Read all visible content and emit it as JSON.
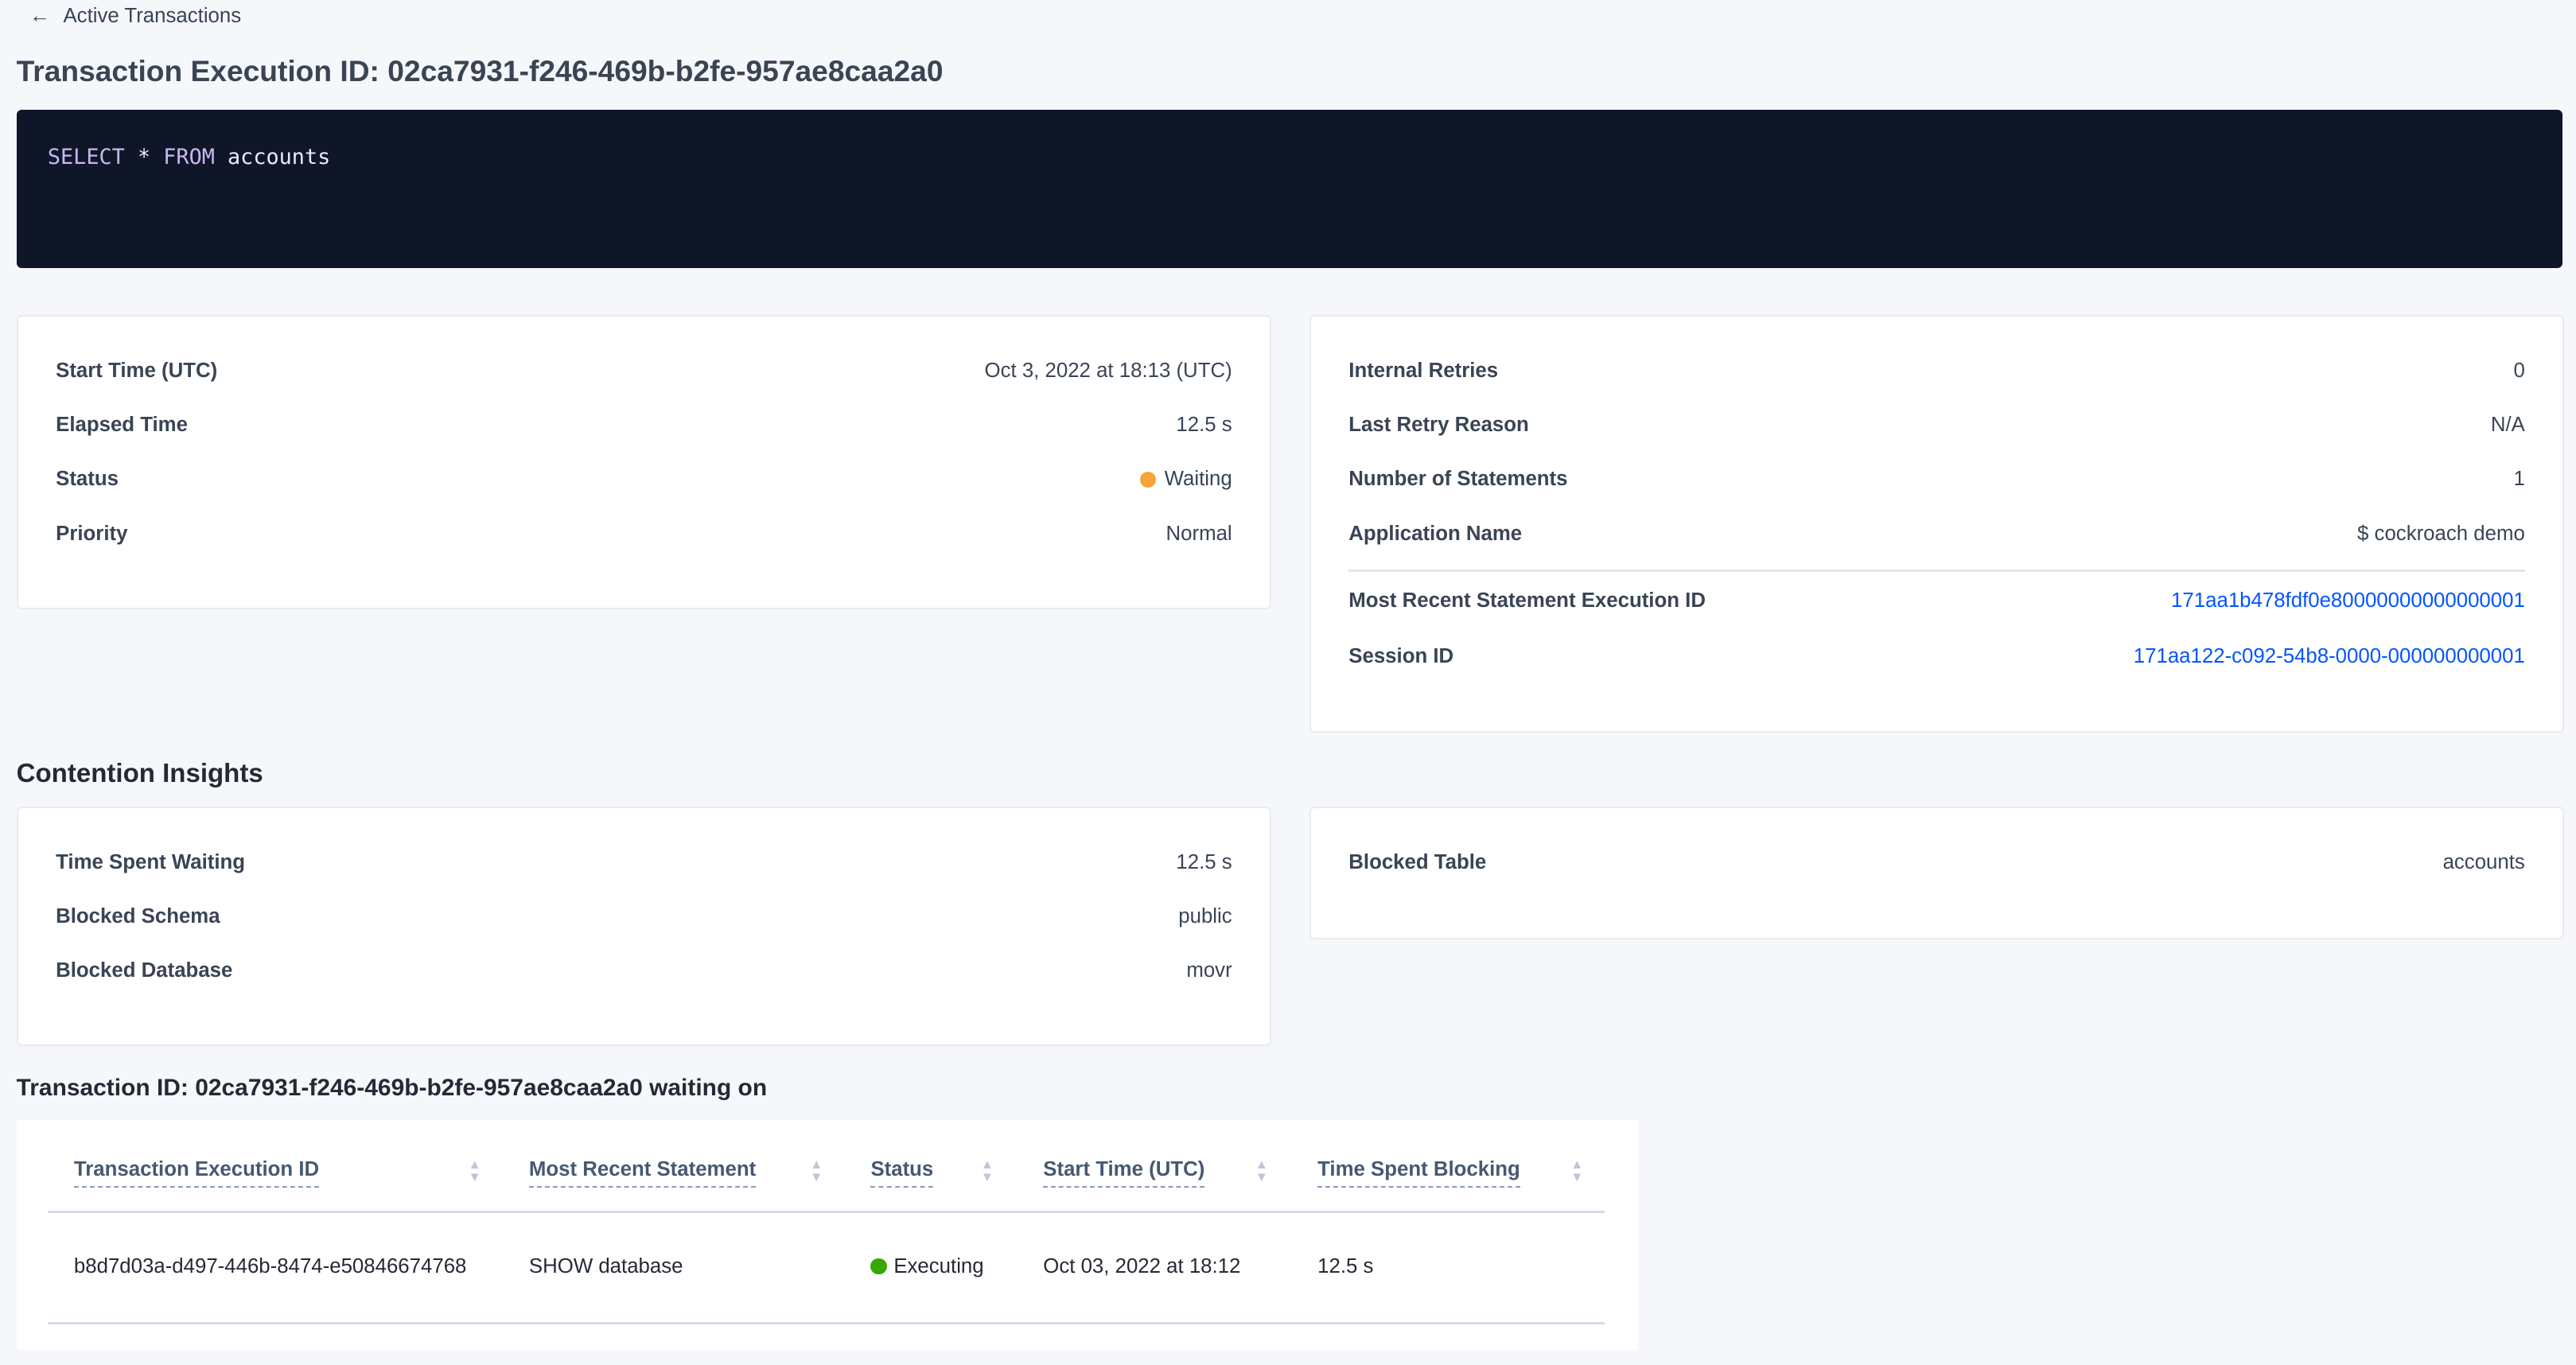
{
  "breadcrumb": {
    "label": "Active Transactions",
    "icon": "arrow-left-icon"
  },
  "title": "Transaction Execution ID: 02ca7931-f246-469b-b2fe-957ae8caa2a0",
  "sql": {
    "kw1": "SELECT",
    "star": "*",
    "kw2": "FROM",
    "table": "accounts"
  },
  "summary_left": [
    {
      "label": "Start Time (UTC)",
      "value": "Oct 3, 2022 at 18:13 (UTC)"
    },
    {
      "label": "Elapsed Time",
      "value": "12.5 s"
    },
    {
      "label": "Status",
      "value": "Waiting",
      "status_color": "#f5a53a"
    },
    {
      "label": "Priority",
      "value": "Normal"
    }
  ],
  "summary_right": [
    {
      "label": "Internal Retries",
      "value": "0"
    },
    {
      "label": "Last Retry Reason",
      "value": "N/A"
    },
    {
      "label": "Number of Statements",
      "value": "1"
    },
    {
      "label": "Application Name",
      "value": "$ cockroach demo"
    },
    {
      "label": "Most Recent Statement Execution ID",
      "value": "171aa1b478fdf0e80000000000000001"
    },
    {
      "label": "Session ID",
      "value": "171aa122-c092-54b8-0000-000000000001"
    }
  ],
  "contention": {
    "heading": "Contention Insights",
    "left": [
      {
        "label": "Time Spent Waiting",
        "value": "12.5 s"
      },
      {
        "label": "Blocked Schema",
        "value": "public"
      },
      {
        "label": "Blocked Database",
        "value": "movr"
      }
    ],
    "right": [
      {
        "label": "Blocked Table",
        "value": "accounts"
      }
    ]
  },
  "waiting": {
    "heading": "Transaction ID: 02ca7931-f246-469b-b2fe-957ae8caa2a0 waiting on",
    "columns": [
      "Transaction Execution ID",
      "Most Recent Statement",
      "Status",
      "Start Time (UTC)",
      "Time Spent Blocking"
    ],
    "rows": [
      {
        "id": "b8d7d03a-d497-446b-8474-e50846674768",
        "statement": "SHOW database",
        "status": "Executing",
        "status_color": "#37a806",
        "start": "Oct 03, 2022 at 18:12",
        "blocking": "12.5 s"
      }
    ]
  }
}
